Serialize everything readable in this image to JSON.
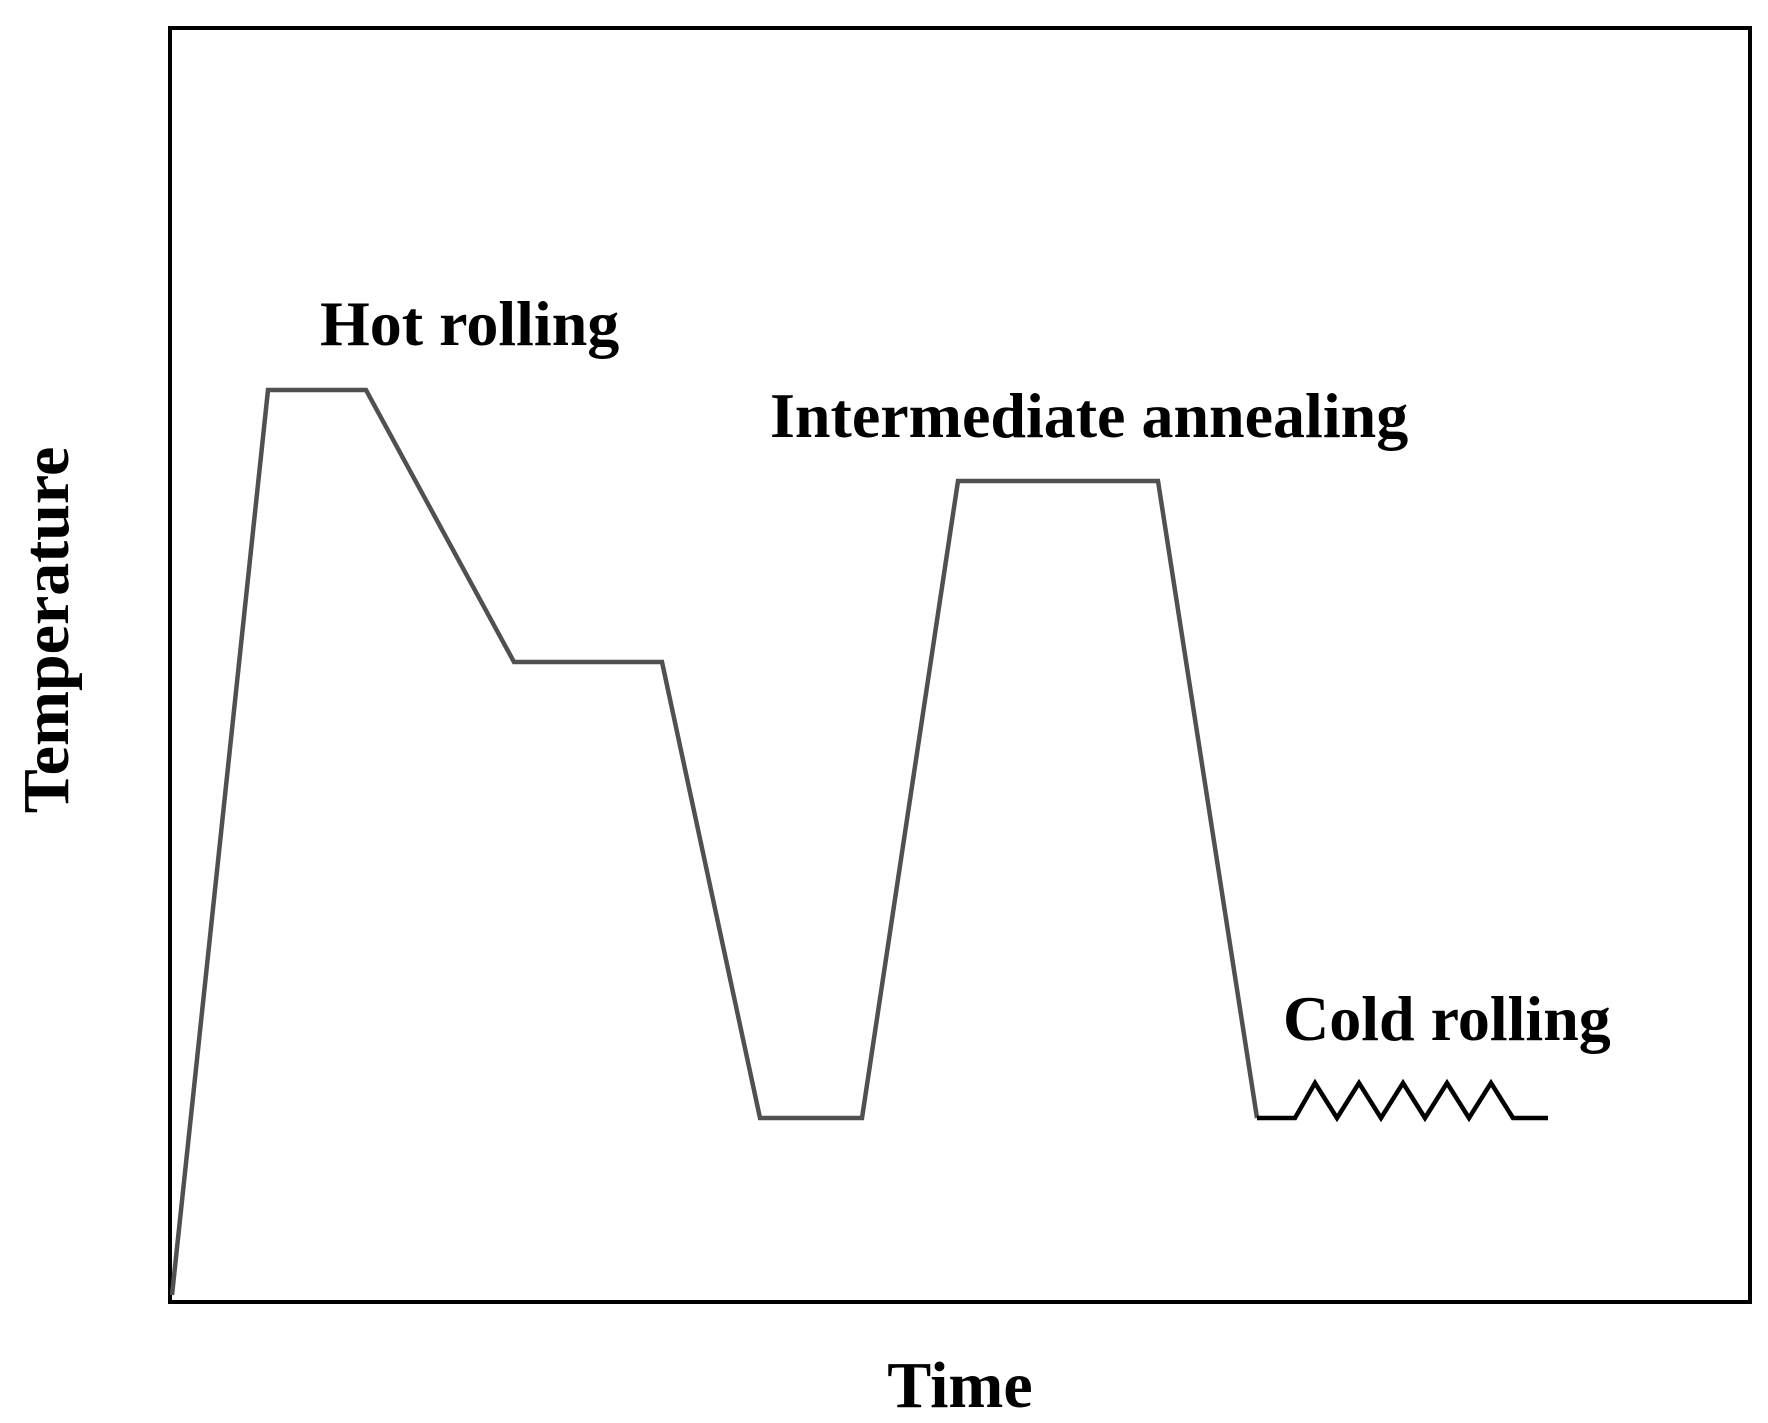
{
  "axes": {
    "x_label": "Time",
    "y_label": "Temperature"
  },
  "stages": {
    "hot_rolling": "Hot rolling",
    "intermediate_annealing": "Intermediate annealing",
    "cold_rolling": "Cold rolling"
  },
  "colors": {
    "frame": "#000000",
    "curve": "#505050",
    "cold_rolling_segment": "#000000",
    "text": "#000000",
    "background": "#ffffff"
  }
}
